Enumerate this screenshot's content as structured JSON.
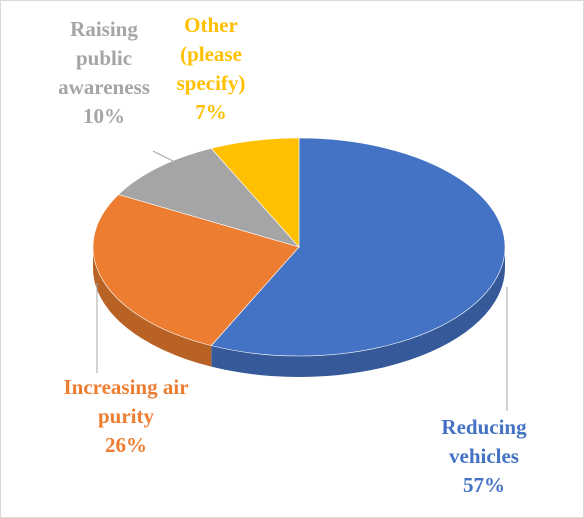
{
  "chart_data": {
    "type": "pie",
    "categories": [
      "Reducing vehicles",
      "Increasing air purity",
      "Raising public awareness",
      "Other (please specify)"
    ],
    "values": [
      57,
      26,
      10,
      7
    ],
    "value_labels": [
      "57%",
      "26%",
      "10%",
      "7%"
    ],
    "colors": [
      "#4472c4",
      "#ed7d31",
      "#a5a5a5",
      "#ffc000"
    ],
    "three_d": true
  }
}
